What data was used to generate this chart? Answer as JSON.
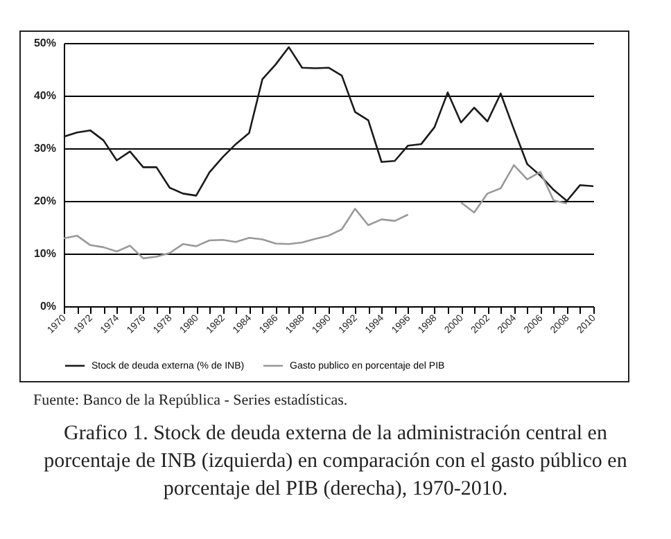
{
  "chart_data": {
    "type": "line",
    "title": "Grafico 1. Stock de deuda externa de la administración central en porcentaje de INB (izquierda) en comparación con el gasto público en porcentaje del PIB (derecha), 1970-2010.",
    "annotations": [
      "Fuente: Banco de la República - Series estadísticas."
    ],
    "x": [
      1970,
      1971,
      1972,
      1973,
      1974,
      1975,
      1976,
      1977,
      1978,
      1979,
      1980,
      1981,
      1982,
      1983,
      1984,
      1985,
      1986,
      1987,
      1988,
      1989,
      1990,
      1991,
      1992,
      1993,
      1994,
      1995,
      1996,
      1997,
      1998,
      1999,
      2000,
      2001,
      2002,
      2003,
      2004,
      2005,
      2006,
      2007,
      2008,
      2009,
      2010
    ],
    "series": [
      {
        "name": "Stock de deuda externa (% de INB)",
        "color": "#1a1a1a",
        "values": [
          32.2,
          33.0,
          33.4,
          31.5,
          27.7,
          29.4,
          26.4,
          26.4,
          22.5,
          21.4,
          21.0,
          25.4,
          28.3,
          30.8,
          32.9,
          43.1,
          45.9,
          49.2,
          45.3,
          45.2,
          45.3,
          43.8,
          36.9,
          35.3,
          27.4,
          27.6,
          30.5,
          30.8,
          34.0,
          40.6,
          34.9,
          37.7,
          35.1,
          40.4,
          33.6,
          27.0,
          24.8,
          22.1,
          20.0,
          23.0,
          22.8
        ]
      },
      {
        "name": "Gasto publico en porcentaje del PIB",
        "color": "#999999",
        "values": [
          12.9,
          13.4,
          11.6,
          11.2,
          10.4,
          11.5,
          9.1,
          9.4,
          10.1,
          11.8,
          11.4,
          12.5,
          12.6,
          12.2,
          13.0,
          12.7,
          11.9,
          11.8,
          12.1,
          12.8,
          13.4,
          14.6,
          18.5,
          15.4,
          16.5,
          16.2,
          17.4,
          null,
          null,
          null,
          19.7,
          17.8,
          21.4,
          22.4,
          26.8,
          24.1,
          25.5,
          20.1,
          19.5,
          null,
          null
        ]
      }
    ],
    "xlim": [
      1970,
      2010
    ],
    "xticks": [
      1970,
      {
        "value": 1971,
        "label": null
      },
      1972,
      {
        "value": 1973,
        "label": null
      },
      1974,
      {
        "value": 1975,
        "label": null
      },
      1976,
      {
        "value": 1977,
        "label": null
      },
      1978,
      {
        "value": 1979,
        "label": null
      },
      1980,
      {
        "value": 1981,
        "label": null
      },
      1982,
      {
        "value": 1983,
        "label": null
      },
      1984,
      {
        "value": 1985,
        "label": null
      },
      1986,
      {
        "value": 1987,
        "label": null
      },
      1988,
      {
        "value": 1989,
        "label": null
      },
      1990,
      {
        "value": 1991,
        "label": null
      },
      1992,
      {
        "value": 1993,
        "label": null
      },
      1994,
      {
        "value": 1995,
        "label": null
      },
      1996,
      {
        "value": 1997,
        "label": null
      },
      1998,
      {
        "value": 1999,
        "label": null
      },
      2000,
      {
        "value": 2001,
        "label": null
      },
      2002,
      {
        "value": 2003,
        "label": null
      },
      2004,
      {
        "value": 2005,
        "label": null
      },
      2006,
      {
        "value": 2007,
        "label": null
      },
      2008,
      {
        "value": 2009,
        "label": null
      },
      2010
    ],
    "ylim": [
      0,
      50
    ],
    "yticks": [
      {
        "value": 0,
        "label": "0%"
      },
      {
        "value": 10,
        "label": "10%"
      },
      {
        "value": 20,
        "label": "20%"
      },
      {
        "value": 30,
        "label": "30%"
      },
      {
        "value": 40,
        "label": "40%"
      },
      {
        "value": 50,
        "label": "50%"
      }
    ],
    "grid": "y",
    "legend": "bottom",
    "marker": "none",
    "line_style": "solid"
  }
}
